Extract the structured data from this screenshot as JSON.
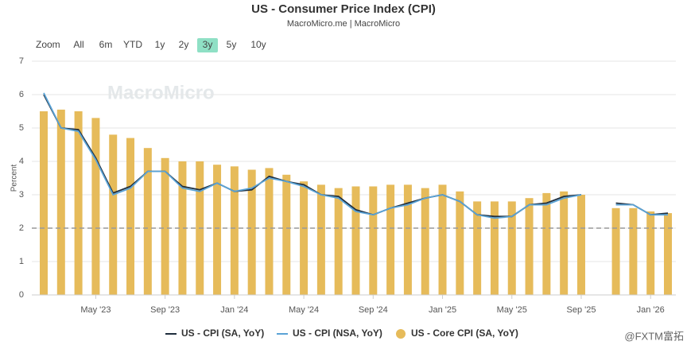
{
  "chart_data": {
    "type": "bar-line",
    "title": "US - Consumer Price Index (CPI)",
    "subtitle": "MacroMicro.me | MacroMicro",
    "range_selector": {
      "label": "Zoom",
      "buttons": [
        "All",
        "6m",
        "YTD",
        "1y",
        "2y",
        "3y",
        "5y",
        "10y"
      ],
      "selected": 5
    },
    "ylabel": "Percent",
    "watermark": "MacroMicro",
    "corner_mark": "@FXTM富拓",
    "categories": [
      null,
      null,
      null,
      "May '23",
      null,
      null,
      null,
      "Sep '23",
      null,
      null,
      null,
      "Jan '24",
      null,
      null,
      null,
      "May '24",
      null,
      null,
      null,
      "Sep '24",
      null,
      null,
      null,
      "Jan '25",
      null,
      null,
      null,
      "May '25",
      null,
      null,
      null,
      "Sep '25",
      null,
      null,
      null,
      "Jan '26",
      null
    ],
    "series": [
      {
        "name": "US - CPI (SA, YoY)",
        "type": "line",
        "color": "#1f2d3d",
        "values": [
          6.0,
          5.0,
          4.95,
          4.1,
          3.05,
          3.25,
          3.7,
          3.7,
          3.25,
          3.15,
          3.35,
          3.1,
          3.15,
          3.55,
          3.4,
          3.3,
          3.0,
          2.95,
          2.55,
          2.4,
          2.6,
          2.75,
          2.9,
          3.0,
          2.8,
          2.4,
          2.35,
          2.35,
          2.7,
          2.75,
          2.95,
          3.0,
          null,
          2.75,
          2.7,
          2.4,
          2.45
        ]
      },
      {
        "name": "US - CPI (NSA, YoY)",
        "type": "line",
        "color": "#5aa3d6",
        "values": [
          6.05,
          5.0,
          4.9,
          4.05,
          3.0,
          3.2,
          3.7,
          3.7,
          3.2,
          3.1,
          3.35,
          3.1,
          3.2,
          3.5,
          3.4,
          3.25,
          3.0,
          2.9,
          2.5,
          2.4,
          2.6,
          2.7,
          2.9,
          3.0,
          2.8,
          2.4,
          2.3,
          2.35,
          2.7,
          2.7,
          2.9,
          3.0,
          null,
          2.7,
          2.7,
          2.4,
          2.4
        ]
      },
      {
        "name": "US - Core CPI (SA, YoY)",
        "type": "bar",
        "color": "#e6bb5a",
        "values": [
          5.5,
          5.55,
          5.5,
          5.3,
          4.8,
          4.7,
          4.4,
          4.1,
          4.0,
          4.0,
          3.9,
          3.85,
          3.75,
          3.8,
          3.6,
          3.4,
          3.3,
          3.2,
          3.25,
          3.25,
          3.3,
          3.3,
          3.2,
          3.3,
          3.1,
          2.8,
          2.8,
          2.8,
          2.9,
          3.05,
          3.1,
          3.0,
          null,
          2.6,
          2.6,
          2.5,
          2.45
        ]
      }
    ],
    "ylim": [
      0,
      7
    ],
    "yticks": [
      0,
      1,
      2,
      3,
      4,
      5,
      6,
      7
    ],
    "grid": true,
    "reference_line": 2,
    "legend": "bottom"
  }
}
